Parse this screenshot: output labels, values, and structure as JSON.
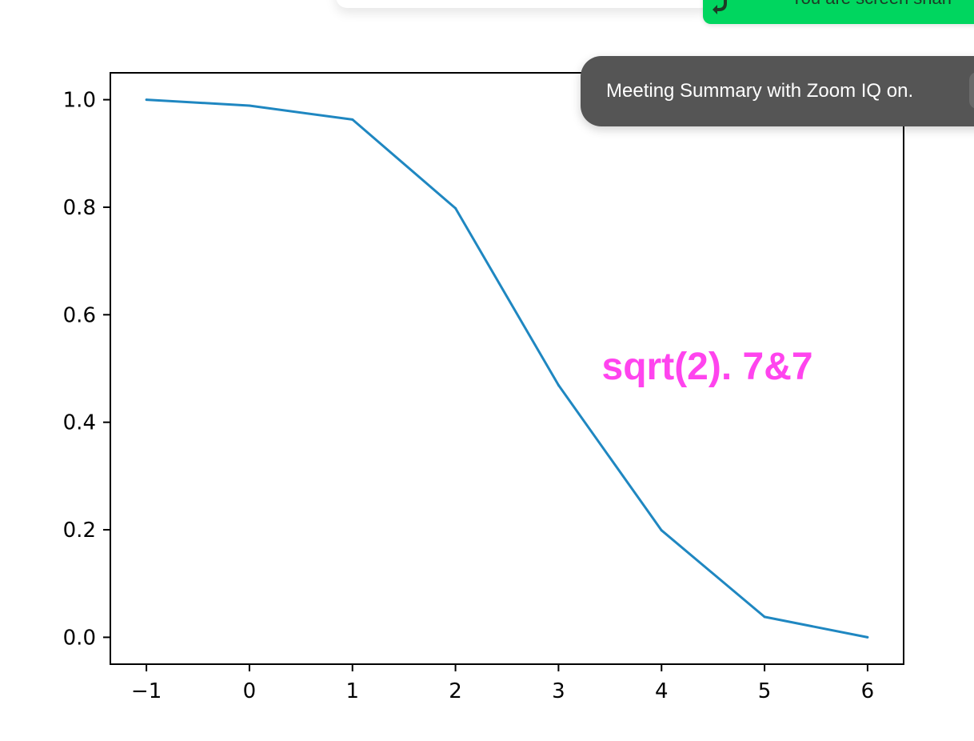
{
  "chart_data": {
    "type": "line",
    "title": "",
    "xlabel": "",
    "ylabel": "",
    "x": [
      -1,
      0,
      1,
      2,
      3,
      4,
      5,
      6
    ],
    "series": [
      {
        "values": [
          1.0,
          0.989,
          0.963,
          0.798,
          0.469,
          0.199,
          0.038,
          0.0
        ],
        "color": "#1f87c1"
      }
    ],
    "xlim": [
      -1.35,
      6.35
    ],
    "ylim": [
      -0.05,
      1.05
    ],
    "xticks": [
      -1,
      0,
      1,
      2,
      3,
      4,
      5,
      6
    ],
    "xtick_labels": [
      "−1",
      "0",
      "1",
      "2",
      "3",
      "4",
      "5",
      "6"
    ],
    "yticks": [
      0.0,
      0.2,
      0.4,
      0.6,
      0.8,
      1.0
    ],
    "ytick_labels": [
      "0.0",
      "0.2",
      "0.4",
      "0.6",
      "0.8",
      "1.0"
    ],
    "grid": false,
    "annotation": {
      "text": "sqrt(2). 7&7",
      "x": 3.42,
      "y": 0.48,
      "color": "#ff44ee"
    }
  },
  "overlay": {
    "share_banner": {
      "text": "You are screen shari",
      "color": "#00d65f"
    },
    "toast": {
      "text": "Meeting Summary with Zoom IQ on."
    }
  }
}
